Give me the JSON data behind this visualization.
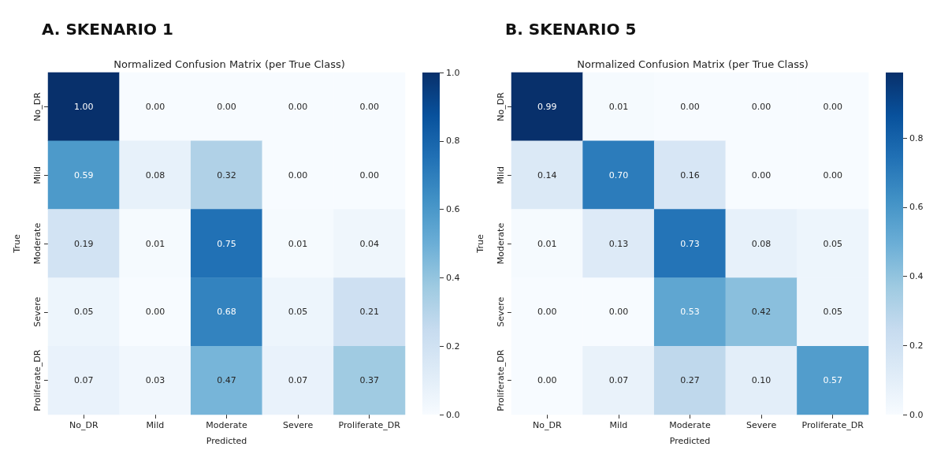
{
  "chart_data": [
    {
      "type": "heatmap",
      "title": "A. SKENARIO 1",
      "subtitle": "Normalized Confusion Matrix (per True Class)",
      "xlabel": "Predicted",
      "ylabel": "True",
      "categories": [
        "No_DR",
        "Mild",
        "Moderate",
        "Severe",
        "Proliferate_DR"
      ],
      "y_categories": [
        "No_DR",
        "Mild",
        "Moderate",
        "Severe",
        "Proliferate_DR"
      ],
      "cells": [
        [
          1.0,
          0.0,
          0.0,
          0.0,
          0.0
        ],
        [
          0.59,
          0.08,
          0.32,
          0.0,
          0.0
        ],
        [
          0.19,
          0.01,
          0.75,
          0.01,
          0.04
        ],
        [
          0.05,
          0.0,
          0.68,
          0.05,
          0.21
        ],
        [
          0.07,
          0.03,
          0.47,
          0.07,
          0.37
        ]
      ],
      "cell_labels": [
        [
          "1.00",
          "0.00",
          "0.00",
          "0.00",
          "0.00"
        ],
        [
          "0.59",
          "0.08",
          "0.32",
          "0.00",
          "0.00"
        ],
        [
          "0.19",
          "0.01",
          "0.75",
          "0.01",
          "0.04"
        ],
        [
          "0.05",
          "0.00",
          "0.68",
          "0.05",
          "0.21"
        ],
        [
          "0.07",
          "0.03",
          "0.47",
          "0.07",
          "0.37"
        ]
      ],
      "clim": [
        0,
        1
      ],
      "cticks": [
        {
          "value": 0,
          "label": "0.0"
        },
        {
          "value": 0.2,
          "label": "0.2"
        },
        {
          "value": 0.4,
          "label": "0.4"
        },
        {
          "value": 0.6,
          "label": "0.6"
        },
        {
          "value": 0.8,
          "label": "0.8"
        },
        {
          "value": 1,
          "label": "1.0"
        }
      ]
    },
    {
      "type": "heatmap",
      "title": "B. SKENARIO 5",
      "subtitle": "Normalized Confusion Matrix (per True Class)",
      "xlabel": "Predicted",
      "ylabel": "True",
      "categories": [
        "No_DR",
        "Mild",
        "Moderate",
        "Severe",
        "Proliferate_DR"
      ],
      "y_categories": [
        "No_DR",
        "Mild",
        "Moderate",
        "Severe",
        "Proliferate_DR"
      ],
      "cells": [
        [
          0.99,
          0.01,
          0.0,
          0.0,
          0.0
        ],
        [
          0.14,
          0.7,
          0.16,
          0.0,
          0.0
        ],
        [
          0.01,
          0.13,
          0.73,
          0.08,
          0.05
        ],
        [
          0.0,
          0.0,
          0.53,
          0.42,
          0.05
        ],
        [
          0.0,
          0.07,
          0.27,
          0.1,
          0.57
        ]
      ],
      "cell_labels": [
        [
          "0.99",
          "0.01",
          "0.00",
          "0.00",
          "0.00"
        ],
        [
          "0.14",
          "0.70",
          "0.16",
          "0.00",
          "0.00"
        ],
        [
          "0.01",
          "0.13",
          "0.73",
          "0.08",
          "0.05"
        ],
        [
          "0.00",
          "0.00",
          "0.53",
          "0.42",
          "0.05"
        ],
        [
          "0.00",
          "0.07",
          "0.27",
          "0.10",
          "0.57"
        ]
      ],
      "clim": [
        0,
        0.99
      ],
      "cticks": [
        {
          "value": 0,
          "label": "0.0"
        },
        {
          "value": 0.2,
          "label": "0.2"
        },
        {
          "value": 0.4,
          "label": "0.4"
        },
        {
          "value": 0.6,
          "label": "0.6"
        },
        {
          "value": 0.8,
          "label": "0.8"
        }
      ]
    }
  ]
}
